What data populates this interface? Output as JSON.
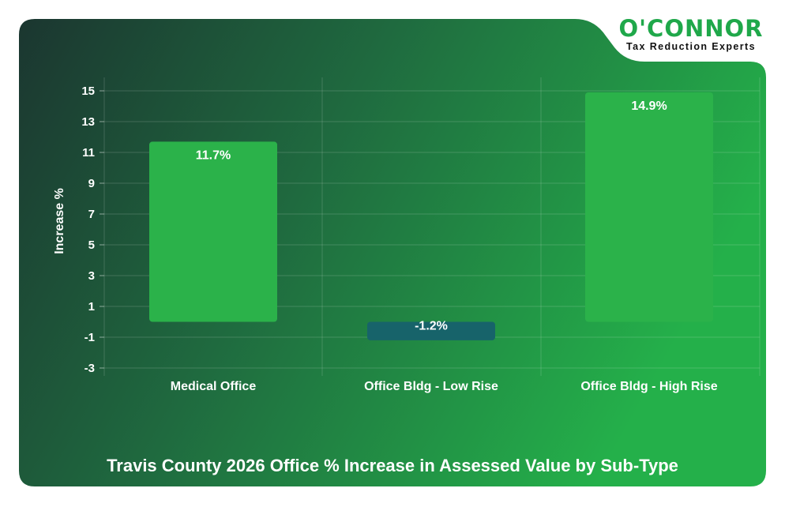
{
  "brand": {
    "name": "O'CONNOR",
    "tagline": "Tax Reduction Experts"
  },
  "chart_data": {
    "type": "bar",
    "title": "Travis County 2026 Office % Increase in Assessed Value by Sub-Type",
    "xlabel": "",
    "ylabel": "Increase %",
    "ylim": [
      -3,
      15
    ],
    "yticks": [
      15,
      13,
      11,
      9,
      7,
      5,
      3,
      1,
      -1,
      -3
    ],
    "grid": true,
    "categories": [
      "Medical Office",
      "Office Bldg - Low Rise",
      "Office Bldg - High Rise"
    ],
    "values": [
      11.7,
      -1.2,
      14.9
    ],
    "data_labels": [
      "11.7%",
      "-1.2%",
      "14.9%"
    ]
  },
  "colors": {
    "positive_bar": "#2bb24a",
    "negative_bar": "#17636a",
    "bg_dark": "#1b3630",
    "bg_bright": "#22ad47"
  }
}
